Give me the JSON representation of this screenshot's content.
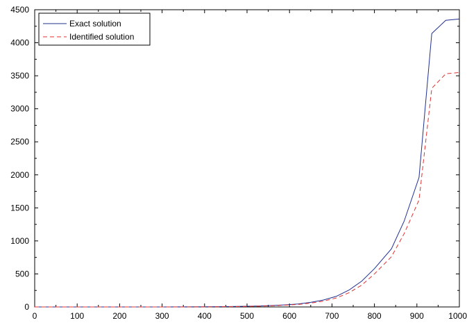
{
  "chart_data": {
    "type": "line",
    "title": "",
    "xlabel": "",
    "ylabel": "",
    "xlim": [
      0,
      1000
    ],
    "ylim": [
      0,
      4500
    ],
    "x_ticks": [
      0,
      100,
      200,
      300,
      400,
      500,
      600,
      700,
      800,
      900,
      1000
    ],
    "y_ticks": [
      0,
      500,
      1000,
      1500,
      2000,
      2500,
      3000,
      3500,
      4000,
      4500
    ],
    "grid": false,
    "legend_position": "top-left",
    "series": [
      {
        "name": "Exact solution",
        "color": "#1f2f8f",
        "line_style": "solid",
        "x": [
          0,
          100,
          200,
          300,
          400,
          450,
          500,
          530,
          560,
          590,
          620,
          650,
          680,
          710,
          740,
          770,
          800,
          840,
          870,
          905,
          935,
          968,
          1000
        ],
        "y": [
          0,
          0,
          0,
          0,
          2,
          5,
          10,
          15,
          22,
          32,
          45,
          70,
          105,
          160,
          255,
          390,
          580,
          880,
          1300,
          1960,
          4140,
          4340,
          4360
        ]
      },
      {
        "name": "Identified solution",
        "color": "#e0302f",
        "line_style": "dashed",
        "x": [
          0,
          100,
          200,
          300,
          400,
          450,
          500,
          530,
          560,
          590,
          620,
          650,
          680,
          710,
          740,
          770,
          800,
          840,
          870,
          905,
          935,
          968,
          1000
        ],
        "y": [
          0,
          0,
          0,
          0,
          1,
          4,
          8,
          12,
          18,
          27,
          38,
          58,
          88,
          135,
          215,
          330,
          500,
          760,
          1110,
          1620,
          3310,
          3530,
          3550
        ]
      }
    ]
  }
}
